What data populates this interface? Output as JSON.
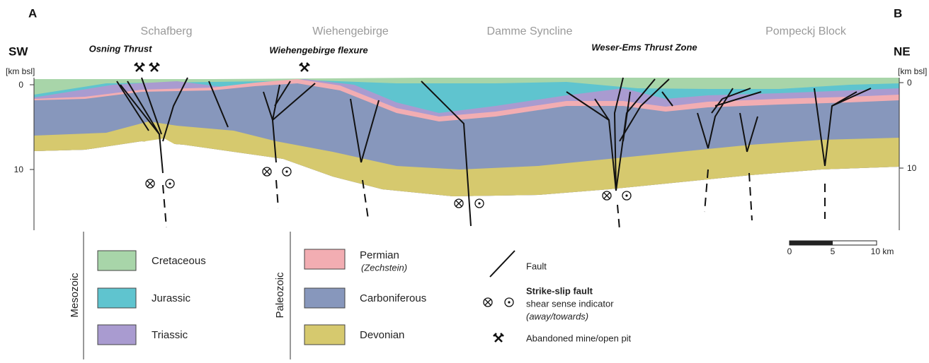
{
  "header": {
    "left_label": "A",
    "right_label": "B",
    "left_direction": "SW",
    "right_direction": "NE"
  },
  "regions": [
    "Schafberg",
    "Wiehengebirge",
    "Damme Syncline",
    "Pompeckj Block"
  ],
  "structures": [
    "Osning Thrust",
    "Wiehengebirge flexure",
    "Weser-Ems Thrust Zone"
  ],
  "axes": {
    "left": {
      "unit": "[km bsl]",
      "ticks": [
        "0",
        "10"
      ]
    },
    "right": {
      "unit": "[km bsl]",
      "ticks": [
        "0",
        "10"
      ]
    }
  },
  "scale_bar": {
    "ticks": [
      "0",
      "5",
      "10 km"
    ]
  },
  "legend": {
    "groups": [
      {
        "era": "Mesozoic",
        "units": [
          {
            "name": "Cretaceous"
          },
          {
            "name": "Jurassic"
          },
          {
            "name": "Triassic"
          }
        ]
      },
      {
        "era": "Paleozoic",
        "units": [
          {
            "name": "Permian",
            "note": "(Zechstein)"
          },
          {
            "name": "Carboniferous"
          },
          {
            "name": "Devonian"
          }
        ]
      }
    ],
    "symbols": {
      "fault": "Fault",
      "strike_slip_title": "Strike-slip fault",
      "strike_slip_desc": "shear sense indicator",
      "strike_slip_note": "(away/towards)",
      "mine": "Abandoned mine/open pit"
    }
  }
}
